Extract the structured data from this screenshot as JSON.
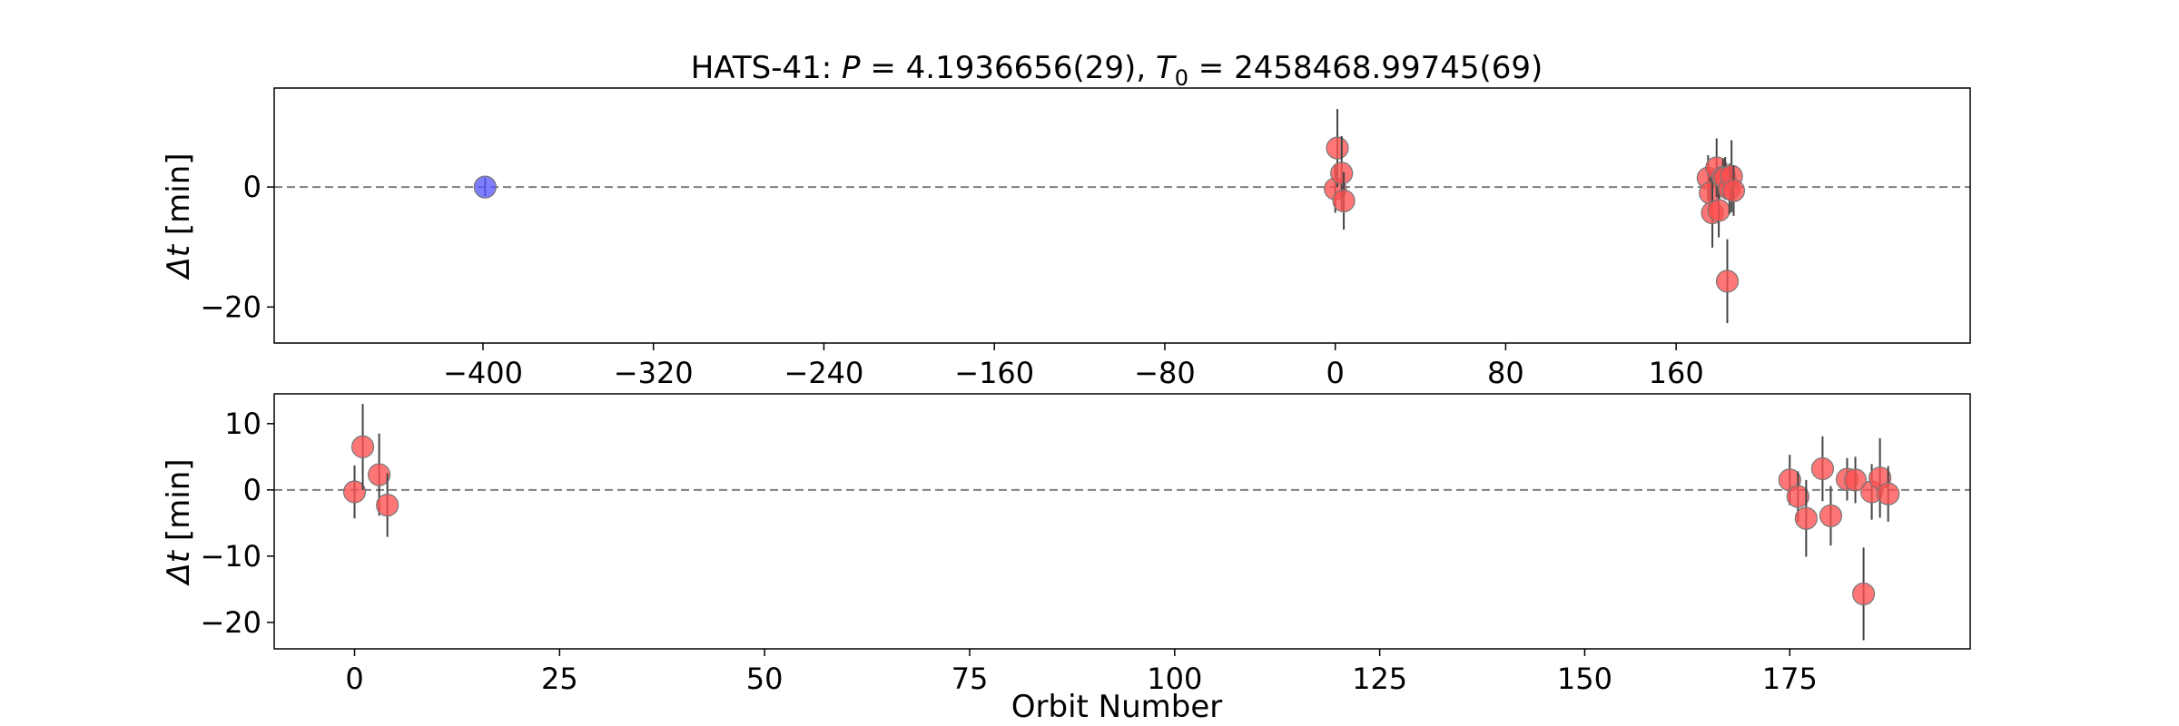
{
  "title": "HATS-41: P = 4.1936656(29), T0 = 2458468.99745(69)",
  "title_parts": {
    "prefix": "HATS-41: ",
    "p_sym": "P",
    "p_val": " = 4.1936656(29), ",
    "t_sym": "T",
    "t_sub": "0",
    "t_val": " = 2458468.99745(69)"
  },
  "chart_data": [
    {
      "type": "scatter",
      "xlabel": "",
      "ylabel": "Δt [min]",
      "ylabel_parts": {
        "sym": "Δt",
        "unit": " [min]"
      },
      "xlim": [
        -498,
        298
      ],
      "ylim": [
        -26,
        16.5
      ],
      "xticks": [
        -400,
        -320,
        -240,
        -160,
        -80,
        0,
        80,
        160
      ],
      "xtick_labels": [
        "−400",
        "−320",
        "−240",
        "−160",
        "−80",
        "0",
        "80",
        "160"
      ],
      "yticks": [
        -20,
        0
      ],
      "ytick_labels": [
        "−20",
        "0"
      ],
      "grid": false,
      "reference_line_y": 0,
      "series": [
        {
          "color": "#5a5aff",
          "points": [
            {
              "x": -399,
              "y": 0.0,
              "err": 1.5
            }
          ]
        },
        {
          "color": "#ff5050",
          "points": [
            {
              "x": 0,
              "y": -0.3,
              "err": 4.0
            },
            {
              "x": 1,
              "y": 6.5,
              "err": 6.5
            },
            {
              "x": 3,
              "y": 2.3,
              "err": 6.2
            },
            {
              "x": 4,
              "y": -2.3,
              "err": 4.8
            },
            {
              "x": 175,
              "y": 1.5,
              "err": 3.8
            },
            {
              "x": 176,
              "y": -1.0,
              "err": 3.8
            },
            {
              "x": 177,
              "y": -4.3,
              "err": 5.8
            },
            {
              "x": 179,
              "y": 3.2,
              "err": 4.9
            },
            {
              "x": 180,
              "y": -3.9,
              "err": 4.5
            },
            {
              "x": 182,
              "y": 1.6,
              "err": 3.2
            },
            {
              "x": 183,
              "y": 1.5,
              "err": 3.5
            },
            {
              "x": 184,
              "y": -15.7,
              "err": 7.0
            },
            {
              "x": 185,
              "y": -0.3,
              "err": 4.2
            },
            {
              "x": 186,
              "y": 1.8,
              "err": 6.0
            },
            {
              "x": 187,
              "y": -0.6,
              "err": 4.2
            }
          ]
        }
      ]
    },
    {
      "type": "scatter",
      "xlabel": "Orbit Number",
      "ylabel": "Δt [min]",
      "ylabel_parts": {
        "sym": "Δt",
        "unit": " [min]"
      },
      "xlim": [
        -9.8,
        197
      ],
      "ylim": [
        -24,
        14.5
      ],
      "xticks": [
        0,
        25,
        50,
        75,
        100,
        125,
        150,
        175
      ],
      "xtick_labels": [
        "0",
        "25",
        "50",
        "75",
        "100",
        "125",
        "150",
        "175"
      ],
      "yticks": [
        -20,
        -10,
        0,
        10
      ],
      "ytick_labels": [
        "−20",
        "−10",
        "0",
        "10"
      ],
      "grid": false,
      "reference_line_y": 0,
      "series": [
        {
          "color": "#ff5050",
          "points": [
            {
              "x": 0,
              "y": -0.3,
              "err": 4.0
            },
            {
              "x": 1,
              "y": 6.5,
              "err": 6.5
            },
            {
              "x": 3,
              "y": 2.3,
              "err": 6.2
            },
            {
              "x": 4,
              "y": -2.3,
              "err": 4.8
            },
            {
              "x": 175,
              "y": 1.5,
              "err": 3.8
            },
            {
              "x": 176,
              "y": -1.0,
              "err": 3.8
            },
            {
              "x": 177,
              "y": -4.3,
              "err": 5.8
            },
            {
              "x": 179,
              "y": 3.2,
              "err": 4.9
            },
            {
              "x": 180,
              "y": -3.9,
              "err": 4.5
            },
            {
              "x": 182,
              "y": 1.6,
              "err": 3.2
            },
            {
              "x": 183,
              "y": 1.5,
              "err": 3.5
            },
            {
              "x": 184,
              "y": -15.7,
              "err": 7.0
            },
            {
              "x": 185,
              "y": -0.3,
              "err": 4.2
            },
            {
              "x": 186,
              "y": 1.8,
              "err": 6.0
            },
            {
              "x": 187,
              "y": -0.6,
              "err": 4.2
            }
          ]
        }
      ]
    }
  ]
}
